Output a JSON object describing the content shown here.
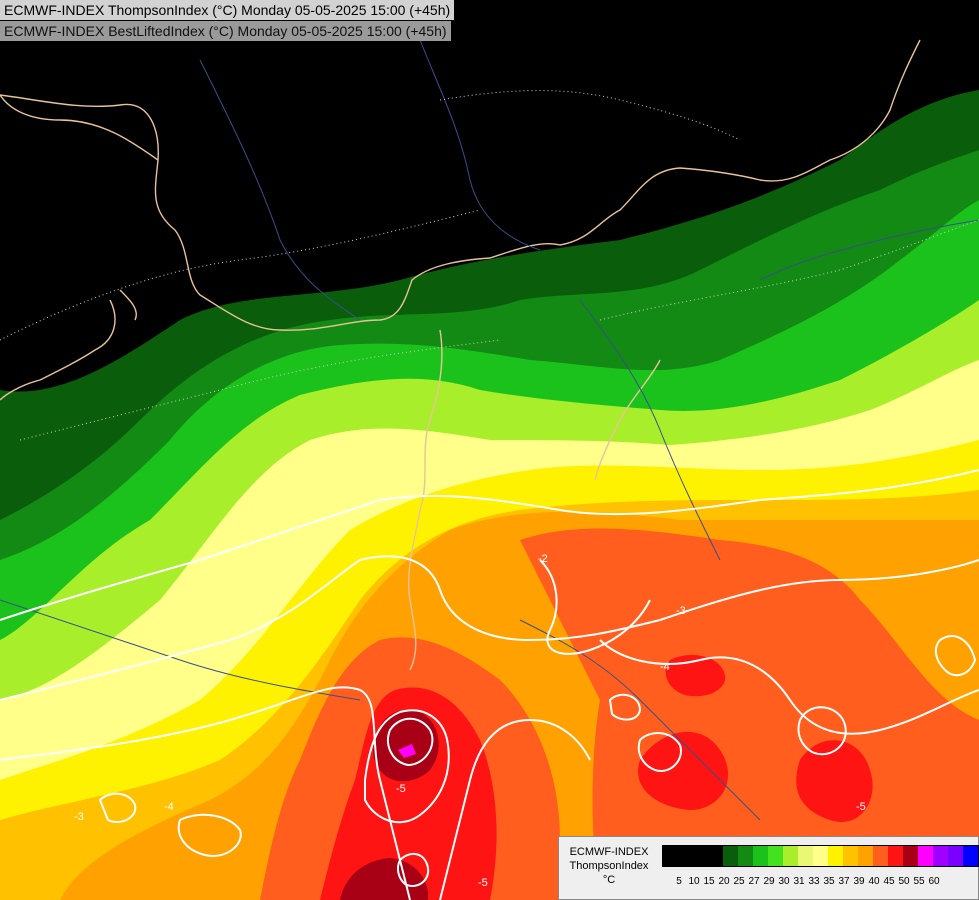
{
  "header": {
    "line1": "ECMWF-INDEX ThompsonIndex (°C) Monday 05-05-2025 15:00 (+45h)",
    "line2": "ECMWF-INDEX BestLiftedIndex (°C) Monday 05-05-2025 15:00 (+45h)"
  },
  "map": {
    "contour_labels": [
      "-2",
      "-3",
      "-4",
      "-5",
      "-5",
      "-4",
      "-3",
      "-5"
    ],
    "colors": {
      "land_line": "#e8c39a",
      "river_line": "#3a4f8a",
      "contour": "#ffffff",
      "background": "#000000"
    }
  },
  "legend": {
    "title_line1": "ECMWF-INDEX",
    "title_line2": "ThompsonIndex",
    "title_line3": "°C",
    "colors": [
      "#000000",
      "#000000",
      "#000000",
      "#000000",
      "#0a5d0a",
      "#138a13",
      "#1cc21c",
      "#44e21e",
      "#a8ee2a",
      "#e9f774",
      "#ffff8a",
      "#fff200",
      "#ffc100",
      "#ffa100",
      "#ff5e1e",
      "#ff1414",
      "#a80014",
      "#ff00ff",
      "#a000ff",
      "#7a00ff",
      "#0000ff"
    ],
    "labels": [
      "5",
      "10",
      "15",
      "20",
      "25",
      "27",
      "29",
      "30",
      "31",
      "33",
      "35",
      "37",
      "39",
      "40",
      "45",
      "50",
      "55",
      "60"
    ]
  }
}
